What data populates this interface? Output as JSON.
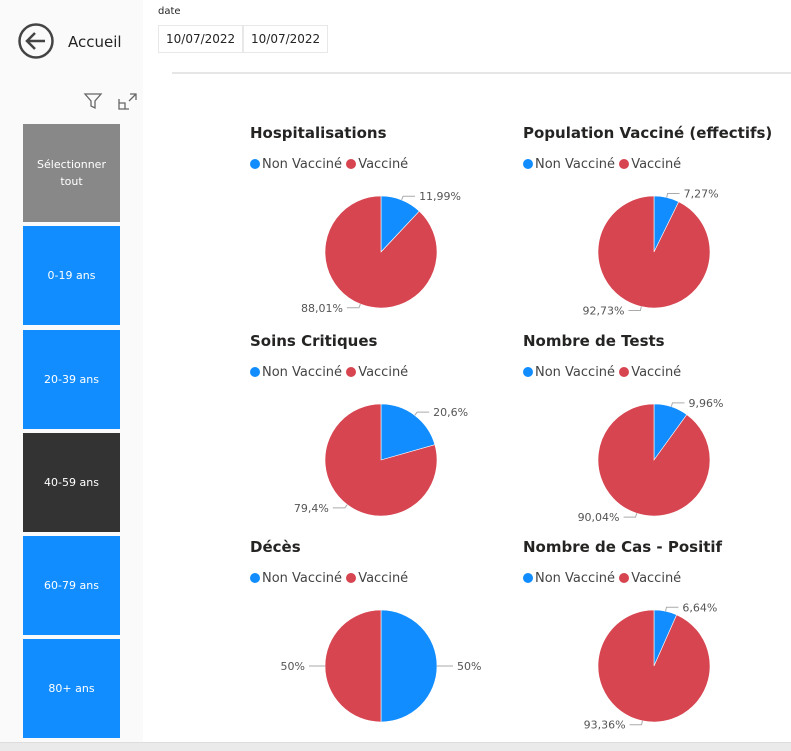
{
  "header": {
    "home_label": "Accueil",
    "date_label": "date",
    "date_start": "10/07/2022",
    "date_end": "10/07/2022"
  },
  "colors": {
    "non_vaccine": "#118DFF",
    "vaccine": "#D64550"
  },
  "slicer": {
    "items": [
      {
        "label": "Sélectionner tout",
        "color": "#888888"
      },
      {
        "label": "0-19 ans",
        "color": "#118DFF"
      },
      {
        "label": "20-39 ans",
        "color": "#118DFF"
      },
      {
        "label": "40-59 ans",
        "color": "#333333"
      },
      {
        "label": "60-79 ans",
        "color": "#118DFF"
      },
      {
        "label": "80+ ans",
        "color": "#118DFF"
      }
    ]
  },
  "legend": {
    "non_vaccine": "Non Vacciné",
    "vaccine": "Vacciné"
  },
  "chart_data": [
    {
      "type": "pie",
      "title": "Hospitalisations",
      "labels": [
        "Non Vacciné",
        "Vacciné"
      ],
      "values": [
        11.99,
        88.01
      ],
      "value_labels": [
        "11,99%",
        "88,01%"
      ]
    },
    {
      "type": "pie",
      "title": "Population Vacciné (effectifs)",
      "labels": [
        "Non Vacciné",
        "Vacciné"
      ],
      "values": [
        7.27,
        92.73
      ],
      "value_labels": [
        "7,27%",
        "92,73%"
      ]
    },
    {
      "type": "pie",
      "title": "Soins Critiques",
      "labels": [
        "Non Vacciné",
        "Vacciné"
      ],
      "values": [
        20.6,
        79.4
      ],
      "value_labels": [
        "20,6%",
        "79,4%"
      ]
    },
    {
      "type": "pie",
      "title": "Nombre de Tests",
      "labels": [
        "Non Vacciné",
        "Vacciné"
      ],
      "values": [
        9.96,
        90.04
      ],
      "value_labels": [
        "9,96%",
        "90,04%"
      ]
    },
    {
      "type": "pie",
      "title": "Décès",
      "labels": [
        "Non Vacciné",
        "Vacciné"
      ],
      "values": [
        50,
        50
      ],
      "value_labels": [
        "50%",
        "50%"
      ]
    },
    {
      "type": "pie",
      "title": "Nombre de Cas - Positif",
      "labels": [
        "Non Vacciné",
        "Vacciné"
      ],
      "values": [
        6.64,
        93.36
      ],
      "value_labels": [
        "6,64%",
        "93,36%"
      ]
    }
  ]
}
